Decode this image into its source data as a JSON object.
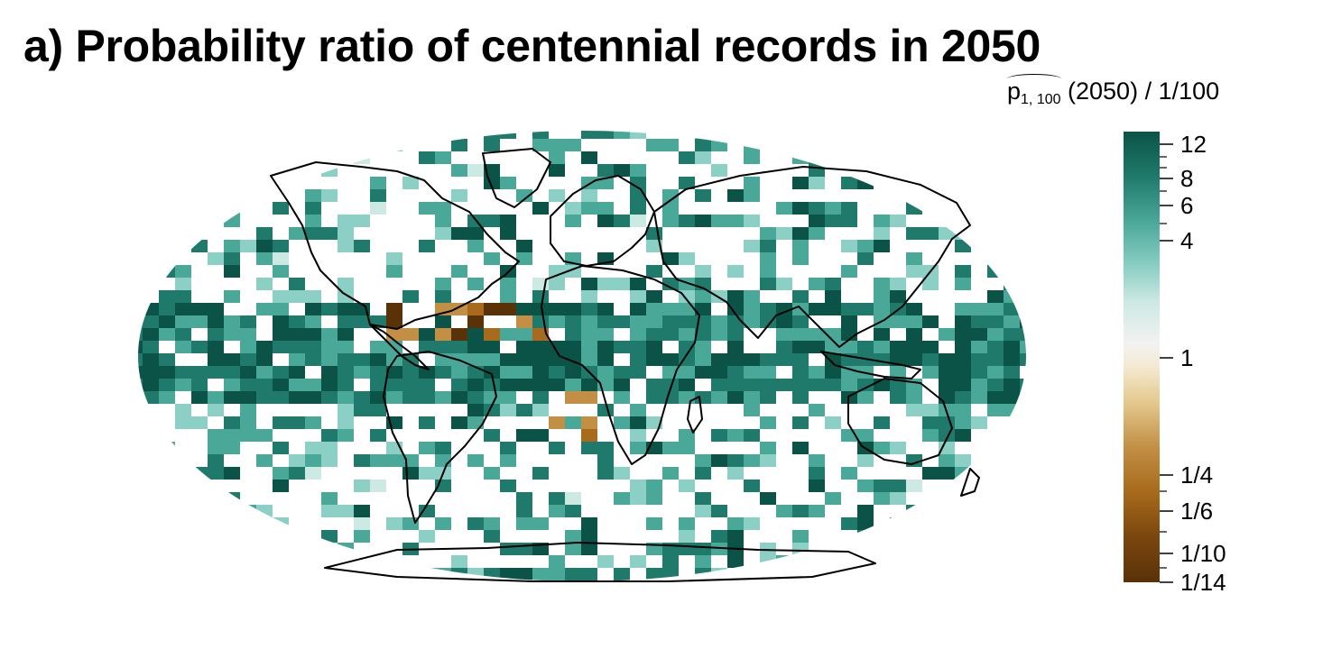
{
  "title": "a) Probability ratio of centennial records in 2050",
  "legend": {
    "title_p": "p",
    "title_sub": "1, 100",
    "title_rest": " (2050)  /  1/100",
    "ticks": [
      "12",
      "8",
      "6",
      "4",
      "1",
      "1/4",
      "1/6",
      "1/10",
      "1/14"
    ],
    "colors": {
      "high": "#0b5346",
      "mid_high": "#4aa899",
      "light_teal": "#cde9e4",
      "neutral": "#f2f2f2",
      "light_brown": "#e5c98f",
      "mid_brown": "#a86a1c",
      "low": "#5a3208"
    }
  }
}
